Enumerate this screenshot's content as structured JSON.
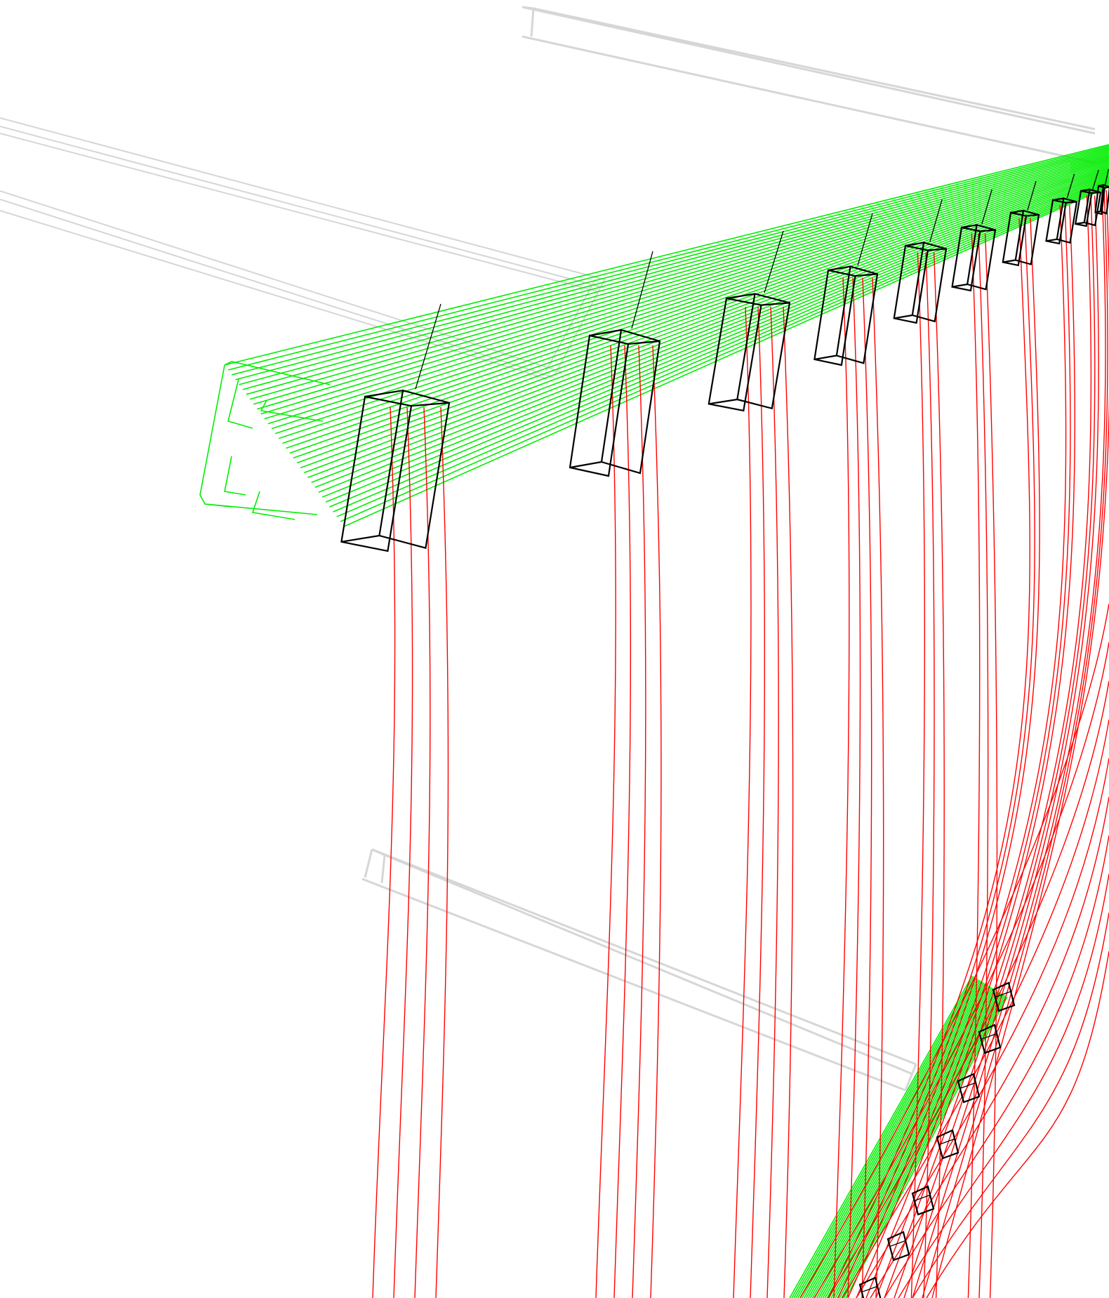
{
  "viewport": {
    "background": "#ffffff"
  },
  "colors": {
    "ghost_rails": "#d6d6d6",
    "cable_tray": "#00ee00",
    "cables": "#ff0000",
    "brackets": "#000000"
  },
  "scene": {
    "upper_bracket_count": 10,
    "lower_bracket_count": 7,
    "cable_count": 30
  }
}
